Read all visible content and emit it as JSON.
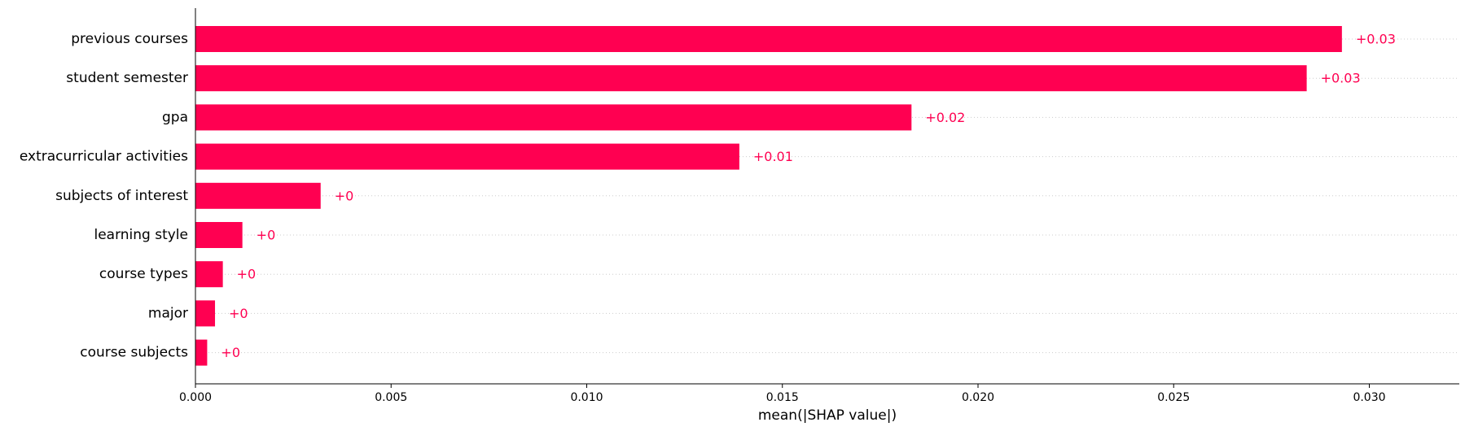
{
  "chart_data": {
    "type": "bar",
    "orientation": "horizontal",
    "categories": [
      "previous courses",
      "student semester",
      "gpa",
      "extracurricular activities",
      "subjects of interest",
      "learning style",
      "course types",
      "major",
      "course subjects"
    ],
    "values": [
      0.0293,
      0.0284,
      0.0183,
      0.0139,
      0.0032,
      0.0012,
      0.0007,
      0.0005,
      0.0003
    ],
    "value_labels": [
      "+0.03",
      "+0.03",
      "+0.02",
      "+0.01",
      "+0",
      "+0",
      "+0",
      "+0",
      "+0"
    ],
    "title": "",
    "xlabel": "mean(|SHAP value|)",
    "ylabel": "",
    "xlim": [
      0,
      0.0323
    ],
    "xticks": [
      0.0,
      0.005,
      0.01,
      0.015,
      0.02,
      0.025,
      0.03
    ],
    "xtick_labels": [
      "0.000",
      "0.005",
      "0.010",
      "0.015",
      "0.020",
      "0.025",
      "0.030"
    ],
    "grid": "dotted horizontal lines per row",
    "legend": "none",
    "bar_color": "#ff0051"
  }
}
